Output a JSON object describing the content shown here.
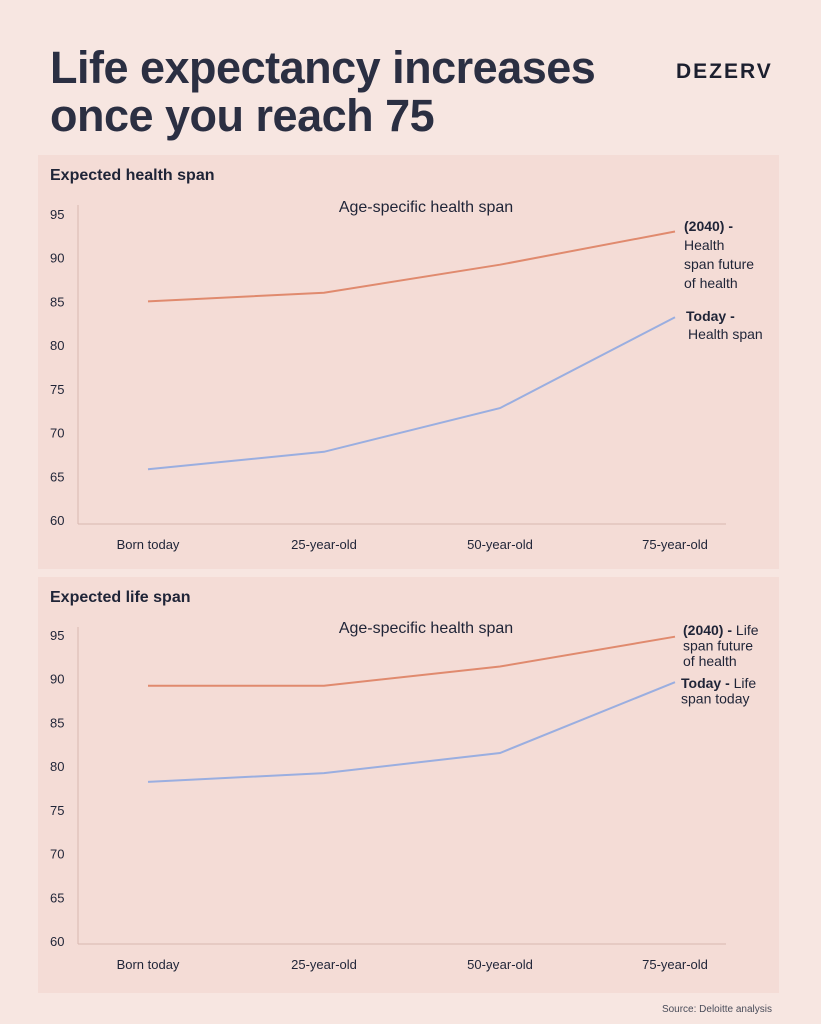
{
  "header": {
    "title": "Life expectancy increases once you reach 75",
    "brand": "DEZERV"
  },
  "footer": {
    "source": "Source: Deloitte analysis"
  },
  "colors": {
    "future_line": "#e08a6e",
    "today_line": "#9aaee0",
    "axis": "#d9b8b0",
    "text": "#1f2437",
    "panel_bg": "#f4dcd6"
  },
  "chart_data": [
    {
      "type": "line",
      "panel_title": "Expected health span",
      "title": "Age-specific health span",
      "categories": [
        "Born today",
        "25-year-old",
        "50-year-old",
        "75-year-old"
      ],
      "yticks": [
        95,
        90,
        85,
        80,
        75,
        70,
        65,
        60
      ],
      "ylim": [
        60,
        95
      ],
      "grid": false,
      "series": [
        {
          "key": "future",
          "label_bold": "(2040) -",
          "label_rest": [
            "Health",
            "span future",
            "of health"
          ],
          "values": [
            85,
            86,
            89.2,
            93
          ]
        },
        {
          "key": "today",
          "label_bold": "Today -",
          "label_rest": [
            "Health span"
          ],
          "values": [
            65.8,
            67.8,
            72.8,
            83.2
          ]
        }
      ]
    },
    {
      "type": "line",
      "panel_title": "Expected life span",
      "title": "Age-specific health span",
      "categories": [
        "Born today",
        "25-year-old",
        "50-year-old",
        "75-year-old"
      ],
      "yticks": [
        95,
        90,
        85,
        80,
        75,
        70,
        65,
        60
      ],
      "ylim": [
        60,
        95
      ],
      "grid": false,
      "series": [
        {
          "key": "future",
          "label_bold": "(2040) -",
          "label_rest": [
            "Life",
            "span future",
            "of health"
          ],
          "values": [
            89.2,
            89.2,
            91.4,
            94.8
          ]
        },
        {
          "key": "today",
          "label_bold": "Today -",
          "label_rest": [
            "Life",
            "span today"
          ],
          "values": [
            78.2,
            79.2,
            81.5,
            89.6
          ]
        }
      ]
    }
  ]
}
